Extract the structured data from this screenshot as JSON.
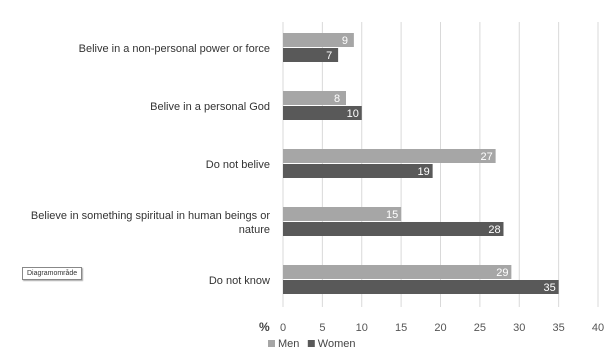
{
  "tooltip": "Diagramområde",
  "chart_data": {
    "type": "bar",
    "orientation": "horizontal",
    "categories": [
      [
        "Belive in a non-personal power or force"
      ],
      [
        "Belive in a personal God"
      ],
      [
        "Do not belive"
      ],
      [
        "Believe in something spiritual in human beings or",
        "nature"
      ],
      [
        "Do not know"
      ]
    ],
    "series": [
      {
        "name": "Men",
        "color": "#a6a6a6",
        "values": [
          9,
          8,
          27,
          15,
          29
        ]
      },
      {
        "name": "Women",
        "color": "#595959",
        "values": [
          7,
          10,
          19,
          28,
          35
        ]
      }
    ],
    "xlim": [
      0,
      40
    ],
    "xticks": [
      0,
      5,
      10,
      15,
      20,
      25,
      30,
      35,
      40
    ],
    "xlabel": "%",
    "grid": true,
    "legend": "bottom-center"
  }
}
